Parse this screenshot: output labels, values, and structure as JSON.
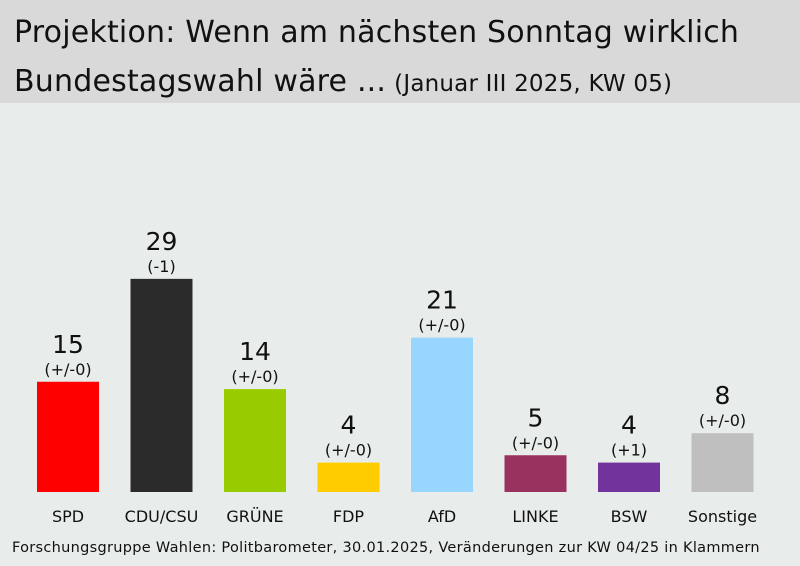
{
  "title": {
    "line1": "Projektion: Wenn am nächsten Sonntag wirklich",
    "line2": "Bundestagswahl wäre ...",
    "subtitle": "(Januar III 2025, KW 05)"
  },
  "chart_data": {
    "type": "bar",
    "categories": [
      "SPD",
      "CDU/CSU",
      "GRÜNE",
      "FDP",
      "AfD",
      "LINKE",
      "BSW",
      "Sonstige"
    ],
    "values": [
      15,
      29,
      14,
      4,
      21,
      5,
      4,
      8
    ],
    "changes": [
      "(+/-0)",
      "(-1)",
      "(+/-0)",
      "(+/-0)",
      "(+/-0)",
      "(+/-0)",
      "(+1)",
      "(+/-0)"
    ],
    "colors": [
      "#ff0000",
      "#2b2b2b",
      "#99cc00",
      "#ffcc00",
      "#99d6ff",
      "#99325f",
      "#72349c",
      "#bfbfbf"
    ],
    "ylim": [
      0,
      30
    ],
    "grid": false,
    "legend": "none"
  },
  "footer": {
    "source": "Forschungsgruppe Wahlen: Politbarometer, 30.01.2025, Veränderungen zur KW 04/25 in Klammern"
  }
}
